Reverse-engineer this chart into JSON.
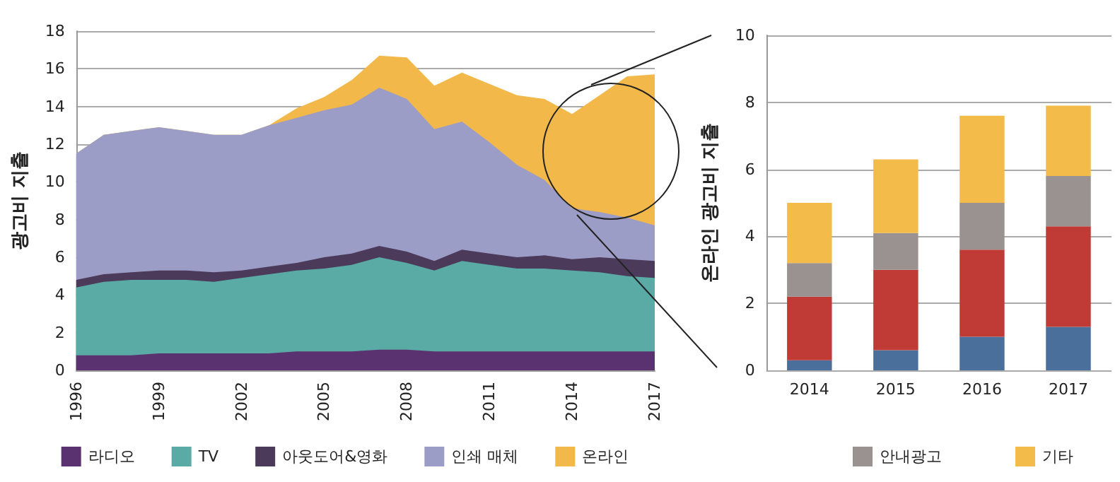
{
  "chart_data": [
    {
      "type": "area",
      "stacked": true,
      "ylabel": "광고비 지출",
      "x": [
        1996,
        1997,
        1998,
        1999,
        2000,
        2001,
        2002,
        2003,
        2004,
        2005,
        2006,
        2007,
        2008,
        2009,
        2010,
        2011,
        2012,
        2013,
        2014,
        2015,
        2016,
        2017
      ],
      "xlim": [
        1996,
        2017
      ],
      "xticks": [
        1996,
        1999,
        2002,
        2005,
        2008,
        2011,
        2014,
        2017
      ],
      "ylim": [
        0,
        18
      ],
      "yticks": [
        0,
        2,
        4,
        6,
        8,
        10,
        12,
        14,
        16,
        18
      ],
      "grid": "y",
      "legend": "bottom",
      "series": [
        {
          "name": "라디오",
          "color": "#5b3270",
          "values": [
            0.8,
            0.8,
            0.8,
            0.9,
            0.9,
            0.9,
            0.9,
            0.9,
            1.0,
            1.0,
            1.0,
            1.1,
            1.1,
            1.0,
            1.0,
            1.0,
            1.0,
            1.0,
            1.0,
            1.0,
            1.0,
            1.0
          ]
        },
        {
          "name": "TV",
          "color": "#5aaaa5",
          "values": [
            3.6,
            3.9,
            4.0,
            3.9,
            3.9,
            3.8,
            4.0,
            4.2,
            4.3,
            4.4,
            4.6,
            4.9,
            4.6,
            4.3,
            4.8,
            4.6,
            4.4,
            4.4,
            4.3,
            4.2,
            4.0,
            3.9
          ]
        },
        {
          "name": "아웃도어&영화",
          "color": "#4b3a5a",
          "values": [
            0.4,
            0.4,
            0.4,
            0.5,
            0.5,
            0.5,
            0.4,
            0.4,
            0.4,
            0.6,
            0.6,
            0.6,
            0.6,
            0.5,
            0.6,
            0.6,
            0.6,
            0.7,
            0.6,
            0.8,
            0.9,
            0.9
          ]
        },
        {
          "name": "인쇄 매체",
          "color": "#9c9dc6",
          "values": [
            6.7,
            7.4,
            7.5,
            7.6,
            7.4,
            7.3,
            7.2,
            7.5,
            7.7,
            7.8,
            7.9,
            8.4,
            8.1,
            7.0,
            6.8,
            5.9,
            4.9,
            4.0,
            2.7,
            2.4,
            2.2,
            1.9
          ]
        },
        {
          "name": "온라인",
          "color": "#f2b94a",
          "values": [
            0,
            0,
            0,
            0,
            0,
            0,
            0,
            0,
            0.5,
            0.7,
            1.3,
            1.7,
            2.2,
            2.3,
            2.6,
            3.1,
            3.7,
            4.3,
            5.0,
            6.2,
            7.5,
            8.0
          ]
        }
      ]
    },
    {
      "type": "bar",
      "stacked": true,
      "ylabel": "온라인 광고비 지출",
      "categories": [
        "2014",
        "2015",
        "2016",
        "2017"
      ],
      "ylim": [
        0,
        10
      ],
      "yticks": [
        0,
        2,
        4,
        6,
        8,
        10
      ],
      "grid": "y",
      "legend": "bottom",
      "series": [
        {
          "color": "#4a6f9a",
          "values": [
            0.3,
            0.6,
            1.0,
            1.3
          ]
        },
        {
          "color": "#c03a36",
          "values": [
            1.9,
            2.4,
            2.6,
            3.0
          ]
        },
        {
          "name": "안내광고",
          "color": "#9a9290",
          "values": [
            1.0,
            1.1,
            1.4,
            1.5
          ]
        },
        {
          "name": "기타",
          "color": "#f2bb4a",
          "values": [
            1.8,
            2.2,
            2.6,
            2.1
          ]
        }
      ]
    }
  ]
}
